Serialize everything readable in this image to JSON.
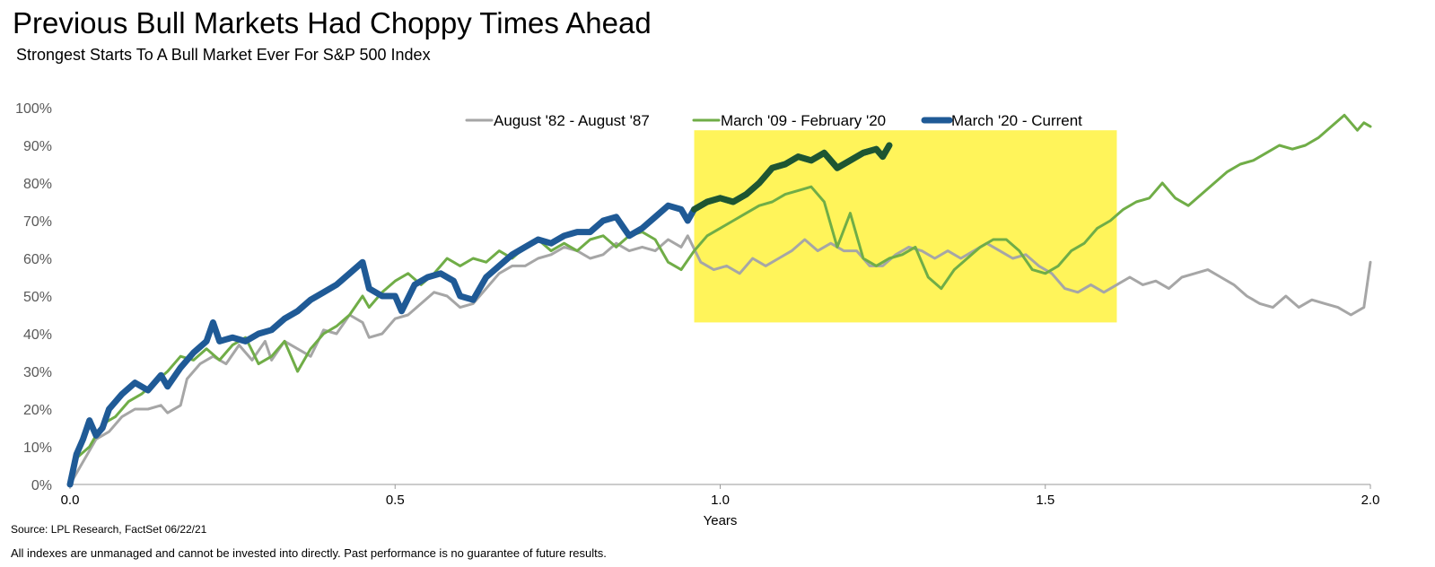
{
  "title": "Previous Bull Markets Had Choppy Times Ahead",
  "subtitle": "Strongest Starts To A Bull Market Ever For S&P 500 Index",
  "source": "Source: LPL Research, FactSet 06/22/21",
  "disclaimer": "All indexes are unmanaged and cannot be invested into directly. Past performance is no guarantee of future results.",
  "chart_data": {
    "type": "line",
    "xlabel": "Years",
    "ylabel": "",
    "xlim": [
      0,
      2
    ],
    "ylim": [
      0,
      100
    ],
    "x_ticks": [
      "0.0",
      "0.5",
      "1.0",
      "1.5",
      "2.0"
    ],
    "y_ticks": [
      "0%",
      "10%",
      "20%",
      "30%",
      "40%",
      "50%",
      "60%",
      "70%",
      "80%",
      "90%",
      "100%"
    ],
    "grid": false,
    "legend_position": "top",
    "highlight_region": {
      "x": [
        0.96,
        1.61
      ],
      "y": [
        43,
        94
      ],
      "color": "#FFF45A"
    },
    "series": [
      {
        "name": "August '82 - August '87",
        "color": "#A6A6A6",
        "points": [
          [
            0,
            0
          ],
          [
            0.02,
            6
          ],
          [
            0.04,
            12
          ],
          [
            0.06,
            14
          ],
          [
            0.08,
            18
          ],
          [
            0.1,
            20
          ],
          [
            0.12,
            20
          ],
          [
            0.14,
            21
          ],
          [
            0.15,
            19
          ],
          [
            0.17,
            21
          ],
          [
            0.18,
            28
          ],
          [
            0.2,
            32
          ],
          [
            0.22,
            34
          ],
          [
            0.24,
            32
          ],
          [
            0.26,
            37
          ],
          [
            0.28,
            33
          ],
          [
            0.3,
            38
          ],
          [
            0.31,
            33
          ],
          [
            0.33,
            38
          ],
          [
            0.35,
            36
          ],
          [
            0.37,
            34
          ],
          [
            0.39,
            41
          ],
          [
            0.41,
            40
          ],
          [
            0.43,
            45
          ],
          [
            0.45,
            43
          ],
          [
            0.46,
            39
          ],
          [
            0.48,
            40
          ],
          [
            0.5,
            44
          ],
          [
            0.52,
            45
          ],
          [
            0.54,
            48
          ],
          [
            0.56,
            51
          ],
          [
            0.58,
            50
          ],
          [
            0.6,
            47
          ],
          [
            0.62,
            48
          ],
          [
            0.64,
            52
          ],
          [
            0.66,
            56
          ],
          [
            0.68,
            58
          ],
          [
            0.7,
            58
          ],
          [
            0.72,
            60
          ],
          [
            0.74,
            61
          ],
          [
            0.76,
            63
          ],
          [
            0.78,
            62
          ],
          [
            0.8,
            60
          ],
          [
            0.82,
            61
          ],
          [
            0.84,
            64
          ],
          [
            0.86,
            62
          ],
          [
            0.88,
            63
          ],
          [
            0.9,
            62
          ],
          [
            0.92,
            65
          ],
          [
            0.94,
            63
          ],
          [
            0.95,
            66
          ],
          [
            0.97,
            59
          ],
          [
            0.99,
            57
          ],
          [
            1.01,
            58
          ],
          [
            1.03,
            56
          ],
          [
            1.05,
            60
          ],
          [
            1.07,
            58
          ],
          [
            1.09,
            60
          ],
          [
            1.11,
            62
          ],
          [
            1.13,
            65
          ],
          [
            1.15,
            62
          ],
          [
            1.17,
            64
          ],
          [
            1.19,
            62
          ],
          [
            1.21,
            62
          ],
          [
            1.23,
            58
          ],
          [
            1.25,
            58
          ],
          [
            1.27,
            61
          ],
          [
            1.29,
            63
          ],
          [
            1.31,
            62
          ],
          [
            1.33,
            60
          ],
          [
            1.35,
            62
          ],
          [
            1.37,
            60
          ],
          [
            1.39,
            62
          ],
          [
            1.41,
            64
          ],
          [
            1.43,
            62
          ],
          [
            1.45,
            60
          ],
          [
            1.47,
            61
          ],
          [
            1.49,
            58
          ],
          [
            1.51,
            56
          ],
          [
            1.53,
            52
          ],
          [
            1.55,
            51
          ],
          [
            1.57,
            53
          ],
          [
            1.59,
            51
          ],
          [
            1.61,
            53
          ],
          [
            1.63,
            55
          ],
          [
            1.65,
            53
          ],
          [
            1.67,
            54
          ],
          [
            1.69,
            52
          ],
          [
            1.71,
            55
          ],
          [
            1.73,
            56
          ],
          [
            1.75,
            57
          ],
          [
            1.77,
            55
          ],
          [
            1.79,
            53
          ],
          [
            1.81,
            50
          ],
          [
            1.83,
            48
          ],
          [
            1.85,
            47
          ],
          [
            1.87,
            50
          ],
          [
            1.89,
            47
          ],
          [
            1.91,
            49
          ],
          [
            1.93,
            48
          ],
          [
            1.95,
            47
          ],
          [
            1.97,
            45
          ],
          [
            1.99,
            47
          ],
          [
            2.0,
            59
          ]
        ]
      },
      {
        "name": "March '09 - February '20",
        "color": "#70AD47",
        "points": [
          [
            0,
            0
          ],
          [
            0.01,
            7
          ],
          [
            0.03,
            10
          ],
          [
            0.05,
            16
          ],
          [
            0.07,
            18
          ],
          [
            0.09,
            22
          ],
          [
            0.11,
            24
          ],
          [
            0.13,
            27
          ],
          [
            0.15,
            30
          ],
          [
            0.17,
            34
          ],
          [
            0.19,
            33
          ],
          [
            0.21,
            36
          ],
          [
            0.23,
            33
          ],
          [
            0.25,
            37
          ],
          [
            0.27,
            39
          ],
          [
            0.29,
            32
          ],
          [
            0.31,
            34
          ],
          [
            0.33,
            38
          ],
          [
            0.35,
            30
          ],
          [
            0.37,
            36
          ],
          [
            0.39,
            40
          ],
          [
            0.41,
            42
          ],
          [
            0.43,
            45
          ],
          [
            0.45,
            50
          ],
          [
            0.46,
            47
          ],
          [
            0.48,
            51
          ],
          [
            0.5,
            54
          ],
          [
            0.52,
            56
          ],
          [
            0.54,
            53
          ],
          [
            0.56,
            56
          ],
          [
            0.58,
            60
          ],
          [
            0.6,
            58
          ],
          [
            0.62,
            60
          ],
          [
            0.64,
            59
          ],
          [
            0.66,
            62
          ],
          [
            0.68,
            60
          ],
          [
            0.7,
            63
          ],
          [
            0.72,
            65
          ],
          [
            0.74,
            62
          ],
          [
            0.76,
            64
          ],
          [
            0.78,
            62
          ],
          [
            0.8,
            65
          ],
          [
            0.82,
            66
          ],
          [
            0.84,
            63
          ],
          [
            0.86,
            66
          ],
          [
            0.88,
            67
          ],
          [
            0.9,
            65
          ],
          [
            0.92,
            59
          ],
          [
            0.94,
            57
          ],
          [
            0.96,
            62
          ],
          [
            0.98,
            66
          ],
          [
            1.0,
            68
          ],
          [
            1.02,
            70
          ],
          [
            1.04,
            72
          ],
          [
            1.06,
            74
          ],
          [
            1.08,
            75
          ],
          [
            1.1,
            77
          ],
          [
            1.12,
            78
          ],
          [
            1.14,
            79
          ],
          [
            1.16,
            75
          ],
          [
            1.18,
            63
          ],
          [
            1.2,
            72
          ],
          [
            1.22,
            60
          ],
          [
            1.24,
            58
          ],
          [
            1.26,
            60
          ],
          [
            1.28,
            61
          ],
          [
            1.3,
            63
          ],
          [
            1.32,
            55
          ],
          [
            1.34,
            52
          ],
          [
            1.36,
            57
          ],
          [
            1.38,
            60
          ],
          [
            1.4,
            63
          ],
          [
            1.42,
            65
          ],
          [
            1.44,
            65
          ],
          [
            1.46,
            62
          ],
          [
            1.48,
            57
          ],
          [
            1.5,
            56
          ],
          [
            1.52,
            58
          ],
          [
            1.54,
            62
          ],
          [
            1.56,
            64
          ],
          [
            1.58,
            68
          ],
          [
            1.6,
            70
          ],
          [
            1.62,
            73
          ],
          [
            1.64,
            75
          ],
          [
            1.66,
            76
          ],
          [
            1.68,
            80
          ],
          [
            1.7,
            76
          ],
          [
            1.72,
            74
          ],
          [
            1.74,
            77
          ],
          [
            1.76,
            80
          ],
          [
            1.78,
            83
          ],
          [
            1.8,
            85
          ],
          [
            1.82,
            86
          ],
          [
            1.84,
            88
          ],
          [
            1.86,
            90
          ],
          [
            1.88,
            89
          ],
          [
            1.9,
            90
          ],
          [
            1.92,
            92
          ],
          [
            1.94,
            95
          ],
          [
            1.96,
            98
          ],
          [
            1.97,
            96
          ],
          [
            1.98,
            94
          ],
          [
            1.99,
            96
          ],
          [
            2.0,
            95
          ]
        ]
      },
      {
        "name": "March '20 - Current",
        "color": "#1F5A96",
        "highlight_color": "#1E5631",
        "points": [
          [
            0,
            0
          ],
          [
            0.01,
            8
          ],
          [
            0.02,
            12
          ],
          [
            0.03,
            17
          ],
          [
            0.04,
            13
          ],
          [
            0.05,
            15
          ],
          [
            0.06,
            20
          ],
          [
            0.08,
            24
          ],
          [
            0.1,
            27
          ],
          [
            0.12,
            25
          ],
          [
            0.14,
            29
          ],
          [
            0.15,
            26
          ],
          [
            0.17,
            31
          ],
          [
            0.19,
            35
          ],
          [
            0.21,
            38
          ],
          [
            0.22,
            43
          ],
          [
            0.23,
            38
          ],
          [
            0.25,
            39
          ],
          [
            0.27,
            38
          ],
          [
            0.29,
            40
          ],
          [
            0.31,
            41
          ],
          [
            0.33,
            44
          ],
          [
            0.35,
            46
          ],
          [
            0.37,
            49
          ],
          [
            0.39,
            51
          ],
          [
            0.41,
            53
          ],
          [
            0.43,
            56
          ],
          [
            0.45,
            59
          ],
          [
            0.46,
            52
          ],
          [
            0.48,
            50
          ],
          [
            0.5,
            50
          ],
          [
            0.51,
            46
          ],
          [
            0.53,
            53
          ],
          [
            0.55,
            55
          ],
          [
            0.57,
            56
          ],
          [
            0.59,
            54
          ],
          [
            0.6,
            50
          ],
          [
            0.62,
            49
          ],
          [
            0.64,
            55
          ],
          [
            0.66,
            58
          ],
          [
            0.68,
            61
          ],
          [
            0.7,
            63
          ],
          [
            0.72,
            65
          ],
          [
            0.74,
            64
          ],
          [
            0.76,
            66
          ],
          [
            0.78,
            67
          ],
          [
            0.8,
            67
          ],
          [
            0.82,
            70
          ],
          [
            0.84,
            71
          ],
          [
            0.86,
            66
          ],
          [
            0.88,
            68
          ],
          [
            0.9,
            71
          ],
          [
            0.92,
            74
          ],
          [
            0.94,
            73
          ],
          [
            0.95,
            70
          ],
          [
            0.96,
            73
          ],
          [
            0.98,
            75
          ],
          [
            1.0,
            76
          ],
          [
            1.02,
            75
          ],
          [
            1.04,
            77
          ],
          [
            1.06,
            80
          ],
          [
            1.08,
            84
          ],
          [
            1.1,
            85
          ],
          [
            1.12,
            87
          ],
          [
            1.14,
            86
          ],
          [
            1.16,
            88
          ],
          [
            1.18,
            84
          ],
          [
            1.2,
            86
          ],
          [
            1.22,
            88
          ],
          [
            1.24,
            89
          ],
          [
            1.25,
            87
          ],
          [
            1.26,
            90
          ]
        ]
      }
    ]
  }
}
